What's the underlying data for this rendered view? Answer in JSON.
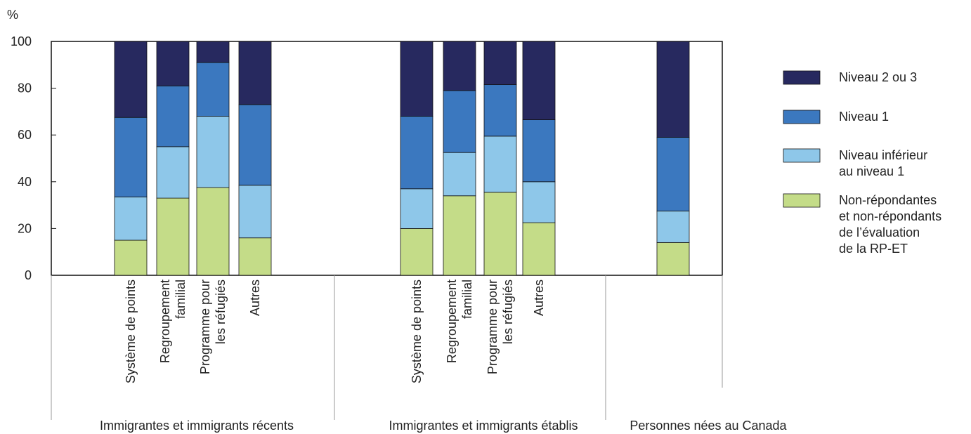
{
  "chart_data": {
    "type": "bar",
    "stacked": true,
    "ylabel": "%",
    "ylim": [
      0,
      100
    ],
    "yticks": [
      0,
      20,
      40,
      60,
      80,
      100
    ],
    "grid": false,
    "legend_position": "right",
    "groups": [
      {
        "label": "Immigrantes et immigrants récents",
        "categories": [
          {
            "label_lines": [
              "Système de points"
            ]
          },
          {
            "label_lines": [
              "Regroupement",
              "familial"
            ]
          },
          {
            "label_lines": [
              "Programme pour",
              "les réfugiés"
            ]
          },
          {
            "label_lines": [
              "Autres"
            ]
          }
        ]
      },
      {
        "label": "Immigrantes et immigrants établis",
        "categories": [
          {
            "label_lines": [
              "Système de points"
            ]
          },
          {
            "label_lines": [
              "Regroupement",
              "familial"
            ]
          },
          {
            "label_lines": [
              "Programme pour",
              "les réfugiés"
            ]
          },
          {
            "label_lines": [
              "Autres"
            ]
          }
        ]
      },
      {
        "label": "Personnes nées au Canada",
        "categories": [
          {
            "label_lines": []
          }
        ]
      }
    ],
    "series": [
      {
        "name_lines": [
          "Non-répondantes",
          "et non-répondants",
          "de l’évaluation",
          "de la RP-ET"
        ],
        "color": "#c4dc88",
        "values": [
          15,
          33,
          37.5,
          16,
          20,
          34,
          35.5,
          22.5,
          14
        ]
      },
      {
        "name_lines": [
          "Niveau inférieur",
          "au niveau 1"
        ],
        "color": "#8ec7e9",
        "values": [
          18.5,
          22,
          30.5,
          22.5,
          17,
          18.5,
          24,
          17.5,
          13.5
        ]
      },
      {
        "name_lines": [
          "Niveau 1"
        ],
        "color": "#3b78bf",
        "values": [
          34,
          26,
          23,
          34.5,
          31,
          26.5,
          22,
          26.5,
          31.5
        ]
      },
      {
        "name_lines": [
          "Niveau 2 ou 3"
        ],
        "color": "#27295f",
        "values": [
          32.5,
          19,
          9,
          27,
          32,
          21,
          18.5,
          33.5,
          41
        ]
      }
    ],
    "legend_order": [
      3,
      2,
      1,
      0
    ]
  }
}
